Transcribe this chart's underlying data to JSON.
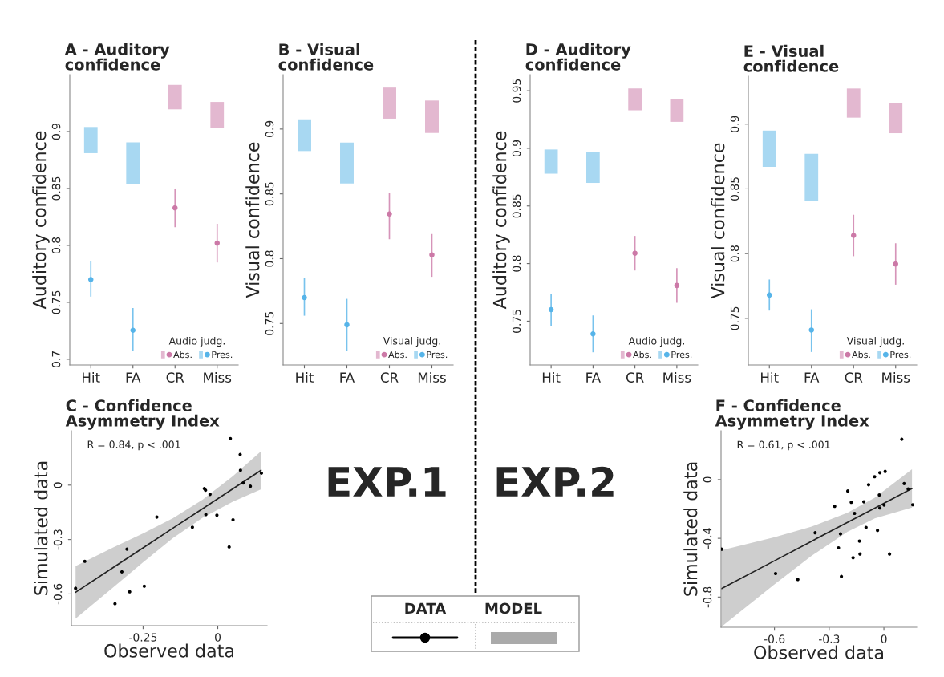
{
  "chart_data": [
    {
      "type": "scatter",
      "title": "A - Auditory\nconfidence",
      "ylabel": "Auditory confidence",
      "categories": [
        "Hit",
        "FA",
        "CR",
        "Miss"
      ],
      "ylim": [
        0.695,
        0.95
      ],
      "yticks": [
        0.7,
        0.75,
        0.8,
        0.85,
        0.9
      ],
      "legend": "bottom right",
      "legend_title": "Audio judg.",
      "marker": "circle",
      "series": [
        {
          "name": "Abs.",
          "color": "#cc79a7",
          "values": [
            null,
            null,
            0.833,
            0.802
          ],
          "errors": [
            null,
            null,
            [
              0.816,
              0.85
            ],
            [
              0.785,
              0.819
            ]
          ]
        },
        {
          "name": "Pres.",
          "color": "#56b4e9",
          "values": [
            0.77,
            0.7255,
            null,
            null
          ],
          "errors": [
            [
              0.755,
              0.786
            ],
            [
              0.707,
              0.745
            ],
            null,
            null
          ]
        },
        {
          "type": "bar",
          "color": "#e3b8d0",
          "base": [
            null,
            null,
            0.9195,
            0.903
          ],
          "values": [
            null,
            null,
            0.0215,
            0.023
          ]
        },
        {
          "type": "bar",
          "color": "#a8d8f2",
          "base": [
            0.881,
            0.854,
            null,
            null
          ],
          "values": [
            0.023,
            0.0365,
            null,
            null
          ]
        }
      ]
    },
    {
      "type": "scatter",
      "title": "B - Visual\nconfidence",
      "ylabel": "Visual confidence",
      "categories": [
        "Hit",
        "FA",
        "CR",
        "Miss"
      ],
      "ylim": [
        0.718,
        0.942
      ],
      "yticks": [
        0.75,
        0.8,
        0.85,
        0.9
      ],
      "legend": "bottom right",
      "legend_title": "Visual judg.",
      "marker": "circle",
      "series": [
        {
          "name": "Abs.",
          "color": "#cc79a7",
          "values": [
            null,
            null,
            0.8345,
            0.803
          ],
          "errors": [
            null,
            null,
            [
              0.815,
              0.8505
            ],
            [
              0.786,
              0.819
            ]
          ]
        },
        {
          "name": "Pres.",
          "color": "#56b4e9",
          "values": [
            0.77,
            0.749,
            null,
            null
          ],
          "errors": [
            [
              0.756,
              0.785
            ],
            [
              0.729,
              0.769
            ],
            null,
            null
          ]
        },
        {
          "type": "bar",
          "color": "#e3b8d0",
          "base": [
            null,
            null,
            0.908,
            0.897
          ],
          "values": [
            null,
            null,
            0.024,
            0.025
          ]
        },
        {
          "type": "bar",
          "color": "#a8d8f2",
          "base": [
            0.883,
            0.858,
            null,
            null
          ],
          "values": [
            0.0245,
            0.0315,
            null,
            null
          ]
        }
      ]
    },
    {
      "type": "scatter",
      "title": "D - Auditory\nconfidence",
      "ylabel": "Auditory confidence",
      "categories": [
        "Hit",
        "FA",
        "CR",
        "Miss"
      ],
      "ylim": [
        0.712,
        0.964
      ],
      "yticks": [
        0.75,
        0.8,
        0.85,
        0.9,
        0.95
      ],
      "legend": "bottom right",
      "legend_title": "Audio judg.",
      "marker": "circle",
      "series": [
        {
          "name": "Abs.",
          "color": "#cc79a7",
          "values": [
            null,
            null,
            0.809,
            0.781
          ],
          "errors": [
            null,
            null,
            [
              0.794,
              0.824
            ],
            [
              0.766,
              0.796
            ]
          ]
        },
        {
          "name": "Pres.",
          "color": "#56b4e9",
          "values": [
            0.76,
            0.739,
            null,
            null
          ],
          "errors": [
            [
              0.746,
              0.774
            ],
            [
              0.723,
              0.755
            ],
            null,
            null
          ]
        },
        {
          "type": "bar",
          "color": "#e3b8d0",
          "base": [
            null,
            null,
            0.933,
            0.923
          ],
          "values": [
            null,
            null,
            0.019,
            0.02
          ]
        },
        {
          "type": "bar",
          "color": "#a8d8f2",
          "base": [
            0.878,
            0.87,
            null,
            null
          ],
          "values": [
            0.021,
            0.027,
            null,
            null
          ]
        }
      ]
    },
    {
      "type": "scatter",
      "title": "E - Visual\nconfidence",
      "ylabel": "Visual confidence",
      "categories": [
        "Hit",
        "FA",
        "CR",
        "Miss"
      ],
      "ylim": [
        0.714,
        0.937
      ],
      "yticks": [
        0.75,
        0.8,
        0.85,
        0.9
      ],
      "legend": "bottom right",
      "legend_title": "Visual judg.",
      "marker": "circle",
      "series": [
        {
          "name": "Abs.",
          "color": "#cc79a7",
          "values": [
            null,
            null,
            0.814,
            0.792
          ],
          "errors": [
            null,
            null,
            [
              0.798,
              0.83
            ],
            [
              0.776,
              0.808
            ]
          ]
        },
        {
          "name": "Pres.",
          "color": "#56b4e9",
          "values": [
            0.768,
            0.741,
            null,
            null
          ],
          "errors": [
            [
              0.756,
              0.78
            ],
            [
              0.724,
              0.757
            ],
            null,
            null
          ]
        },
        {
          "type": "bar",
          "color": "#e3b8d0",
          "base": [
            null,
            null,
            0.905,
            0.893
          ],
          "values": [
            null,
            null,
            0.0225,
            0.023
          ]
        },
        {
          "type": "bar",
          "color": "#a8d8f2",
          "base": [
            0.867,
            0.841,
            null,
            null
          ],
          "values": [
            0.028,
            0.036,
            null,
            null
          ]
        }
      ]
    },
    {
      "type": "scatter",
      "title": "C - Confidence\nAsymmetry Index",
      "xlabel": "Observed data",
      "ylabel": "Simulated data",
      "xlim": [
        -0.49,
        0.165
      ],
      "xticks": [
        -0.25,
        0
      ],
      "ylim": [
        -0.775,
        0.3
      ],
      "yticks": [
        -0.6,
        -0.3,
        0
      ],
      "annotations": [
        "R = 0.84, p < .001"
      ],
      "series": [
        {
          "color": "#000000",
          "marker": "circle",
          "x": [
            0.042,
            0.075,
            0.076,
            0.146,
            0.085,
            0.109,
            -0.045,
            -0.041,
            -0.026,
            -0.003,
            -0.04,
            -0.204,
            0.051,
            -0.085,
            -0.304,
            0.038,
            -0.445,
            -0.321,
            -0.246,
            -0.295,
            -0.344,
            -0.476
          ],
          "values": [
            0.257,
            0.169,
            0.082,
            0.066,
            0.012,
            -0.006,
            -0.019,
            -0.028,
            -0.051,
            -0.166,
            -0.162,
            -0.176,
            -0.191,
            -0.232,
            -0.353,
            -0.341,
            -0.42,
            -0.478,
            -0.557,
            -0.588,
            -0.654,
            -0.569
          ]
        },
        {
          "type": "line",
          "color": "#222222",
          "x": [
            -0.476,
            -0.35,
            -0.25,
            -0.15,
            -0.05,
            0.05,
            0.145
          ],
          "values": [
            -0.591,
            -0.454,
            -0.346,
            -0.237,
            -0.129,
            -0.021,
            0.082
          ],
          "lower": [
            -0.736,
            -0.564,
            -0.426,
            -0.292,
            -0.179,
            -0.091,
            -0.023
          ],
          "upper": [
            -0.446,
            -0.344,
            -0.266,
            -0.182,
            -0.079,
            0.049,
            0.187
          ]
        }
      ]
    },
    {
      "type": "other",
      "annotations": [
        "EXP.1",
        "EXP.2",
        "DATA",
        "MODEL"
      ]
    },
    {
      "type": "scatter",
      "title": "F - Confidence\nAsymmetry Index",
      "xlabel": "Observed data",
      "ylabel": "Simulated data",
      "xlim": [
        -0.893,
        0.18
      ],
      "xticks": [
        -0.6,
        -0.3,
        0
      ],
      "ylim": [
        -1.006,
        0.333
      ],
      "yticks": [
        -0.8,
        -0.4,
        0
      ],
      "annotations": [
        "R = 0.61, p < .001"
      ],
      "series": [
        {
          "color": "#000000",
          "marker": "circle",
          "x": [
            0.098,
            0.007,
            -0.022,
            -0.051,
            -0.084,
            0.111,
            0.133,
            -0.198,
            -0.025,
            -0.11,
            -0.179,
            -0.022,
            0.001,
            0.158,
            -0.27,
            -0.161,
            -0.098,
            -0.035,
            -0.377,
            -0.238,
            -0.134,
            -0.249,
            -0.131,
            0.031,
            -0.169,
            -0.89,
            -0.594,
            -0.472,
            -0.233
          ],
          "values": [
            0.275,
            0.056,
            0.047,
            0.02,
            -0.035,
            -0.027,
            -0.064,
            -0.078,
            -0.104,
            -0.151,
            -0.155,
            -0.193,
            -0.173,
            -0.171,
            -0.182,
            -0.23,
            -0.326,
            -0.346,
            -0.362,
            -0.37,
            -0.419,
            -0.465,
            -0.507,
            -0.507,
            -0.532,
            -0.474,
            -0.64,
            -0.681,
            -0.66
          ]
        },
        {
          "type": "line",
          "color": "#222222",
          "x": [
            -0.89,
            -0.6,
            -0.4,
            -0.2,
            -0.05,
            0.154
          ],
          "values": [
            -0.742,
            -0.553,
            -0.422,
            -0.291,
            -0.194,
            -0.06
          ],
          "lower": [
            -1.002,
            -0.713,
            -0.522,
            -0.356,
            -0.264,
            -0.19
          ],
          "upper": [
            -0.482,
            -0.393,
            -0.322,
            -0.226,
            -0.124,
            0.07
          ]
        }
      ]
    }
  ]
}
